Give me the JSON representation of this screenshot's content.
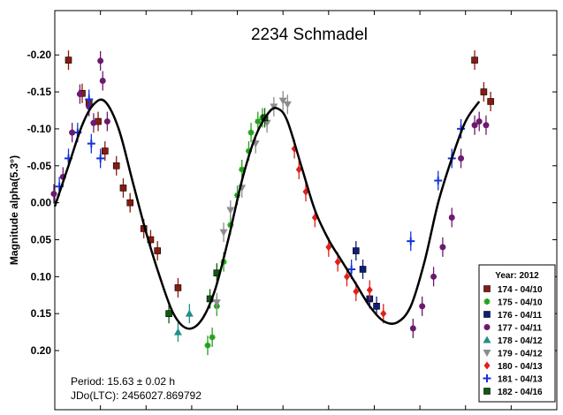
{
  "chart_data": {
    "type": "scatter",
    "title": "2234 Schmadel",
    "xlabel": "",
    "ylabel": "Magnitude alpha(5.3°)",
    "xlim": [
      0,
      1.1
    ],
    "ylim": [
      -0.26,
      0.28
    ],
    "y_reversed": true,
    "y_ticks": [
      -0.2,
      -0.15,
      -0.1,
      -0.05,
      0.0,
      0.05,
      0.1,
      0.15,
      0.2
    ],
    "y_tick_labels": [
      "-0.20",
      "-0.15",
      "-0.10",
      "-0.05",
      "0.00",
      "0.05",
      "0.10",
      "0.15",
      "0.20"
    ],
    "x_ticks": [
      0.1,
      0.2,
      0.3,
      0.4,
      0.5,
      0.6,
      0.7,
      0.8,
      0.9,
      1.0
    ],
    "grid": false,
    "legend_position": "bottom-right",
    "legend_title": "Year: 2012",
    "annotations": [
      "Period: 15.63 ± 0.02 h",
      "JDo(LTC): 2456027.869792"
    ],
    "fit_curve": {
      "color": "#000000",
      "points": [
        [
          0.0,
          0.005
        ],
        [
          0.03,
          -0.05
        ],
        [
          0.06,
          -0.105
        ],
        [
          0.085,
          -0.133
        ],
        [
          0.11,
          -0.137
        ],
        [
          0.14,
          -0.1
        ],
        [
          0.17,
          -0.03
        ],
        [
          0.2,
          0.04
        ],
        [
          0.23,
          0.1
        ],
        [
          0.26,
          0.15
        ],
        [
          0.29,
          0.17
        ],
        [
          0.32,
          0.16
        ],
        [
          0.35,
          0.12
        ],
        [
          0.38,
          0.05
        ],
        [
          0.41,
          -0.03
        ],
        [
          0.44,
          -0.09
        ],
        [
          0.47,
          -0.123
        ],
        [
          0.49,
          -0.127
        ],
        [
          0.51,
          -0.11
        ],
        [
          0.54,
          -0.05
        ],
        [
          0.57,
          0.01
        ],
        [
          0.6,
          0.05
        ],
        [
          0.63,
          0.08
        ],
        [
          0.66,
          0.11
        ],
        [
          0.69,
          0.14
        ],
        [
          0.72,
          0.16
        ],
        [
          0.75,
          0.162
        ],
        [
          0.78,
          0.14
        ],
        [
          0.81,
          0.08
        ],
        [
          0.84,
          0.0
        ],
        [
          0.87,
          -0.06
        ],
        [
          0.9,
          -0.11
        ],
        [
          0.93,
          -0.137
        ]
      ]
    },
    "series": [
      {
        "name": "174 - 04/10",
        "color": "#8b1a0e",
        "marker": "square",
        "points": [
          [
            0.03,
            -0.193
          ],
          [
            0.06,
            -0.148
          ],
          [
            0.075,
            -0.135
          ],
          [
            0.095,
            -0.11
          ],
          [
            0.11,
            -0.07
          ],
          [
            0.135,
            -0.05
          ],
          [
            0.15,
            -0.02
          ],
          [
            0.165,
            0.0
          ],
          [
            0.195,
            0.035
          ],
          [
            0.21,
            0.05
          ],
          [
            0.225,
            0.065
          ],
          [
            0.27,
            0.115
          ],
          [
            0.92,
            -0.193
          ],
          [
            0.94,
            -0.15
          ],
          [
            0.955,
            -0.137
          ]
        ]
      },
      {
        "name": "175 - 04/10",
        "color": "#22a11a",
        "marker": "asterisk",
        "points": [
          [
            0.335,
            0.193
          ],
          [
            0.345,
            0.182
          ],
          [
            0.355,
            0.14
          ],
          [
            0.37,
            0.08
          ],
          [
            0.385,
            0.03
          ],
          [
            0.4,
            -0.01
          ],
          [
            0.41,
            -0.045
          ],
          [
            0.425,
            -0.07
          ],
          [
            0.43,
            -0.095
          ],
          [
            0.445,
            -0.11
          ],
          [
            0.455,
            -0.115
          ]
        ]
      },
      {
        "name": "176 - 04/11",
        "color": "#0d1d7a",
        "marker": "square",
        "points": [
          [
            0.66,
            0.065
          ],
          [
            0.675,
            0.09
          ],
          [
            0.69,
            0.13
          ],
          [
            0.705,
            0.14
          ]
        ]
      },
      {
        "name": "177 - 04/11",
        "color": "#6b1a6e",
        "marker": "circle",
        "points": [
          [
            -0.002,
            -0.012
          ],
          [
            0.018,
            -0.035
          ],
          [
            0.038,
            -0.095
          ],
          [
            0.055,
            -0.147
          ],
          [
            0.075,
            -0.13
          ],
          [
            0.085,
            -0.108
          ],
          [
            0.1,
            -0.192
          ],
          [
            0.105,
            -0.165
          ],
          [
            0.115,
            -0.11
          ],
          [
            0.785,
            0.17
          ],
          [
            0.805,
            0.14
          ],
          [
            0.83,
            0.1
          ],
          [
            0.85,
            0.06
          ],
          [
            0.87,
            0.02
          ],
          [
            0.89,
            -0.06
          ],
          [
            0.92,
            -0.105
          ],
          [
            0.93,
            -0.11
          ],
          [
            0.945,
            -0.105
          ]
        ]
      },
      {
        "name": "178 - 04/12",
        "color": "#1f8f8a",
        "marker": "triangle",
        "points": [
          [
            0.295,
            0.15
          ],
          [
            0.27,
            0.175
          ]
        ]
      },
      {
        "name": "179 - 04/12",
        "color": "#8c8c8c",
        "marker": "triangle-down",
        "points": [
          [
            0.355,
            0.135
          ],
          [
            0.37,
            0.04
          ],
          [
            0.385,
            0.01
          ],
          [
            0.41,
            -0.02
          ],
          [
            0.44,
            -0.08
          ],
          [
            0.465,
            -0.108
          ],
          [
            0.48,
            -0.13
          ],
          [
            0.5,
            -0.138
          ],
          [
            0.51,
            -0.133
          ]
        ]
      },
      {
        "name": "180 - 04/13",
        "color": "#e21f1a",
        "marker": "diamond",
        "points": [
          [
            0.525,
            -0.073
          ],
          [
            0.535,
            -0.045
          ],
          [
            0.55,
            -0.015
          ],
          [
            0.57,
            0.02
          ],
          [
            0.6,
            0.06
          ],
          [
            0.62,
            0.08
          ],
          [
            0.64,
            0.1
          ],
          [
            0.66,
            0.12
          ],
          [
            0.69,
            0.118
          ],
          [
            0.72,
            0.15
          ]
        ]
      },
      {
        "name": "181 - 04/13",
        "color": "#1433d8",
        "marker": "plus",
        "points": [
          [
            0.01,
            -0.022
          ],
          [
            0.03,
            -0.06
          ],
          [
            0.05,
            -0.095
          ],
          [
            0.075,
            -0.14
          ],
          [
            0.08,
            -0.08
          ],
          [
            0.1,
            -0.06
          ],
          [
            0.65,
            0.09
          ],
          [
            0.78,
            0.052
          ],
          [
            0.84,
            -0.03
          ],
          [
            0.87,
            -0.06
          ],
          [
            0.89,
            -0.1
          ]
        ]
      },
      {
        "name": "182 - 04/16",
        "color": "#0e5a0e",
        "marker": "square",
        "points": [
          [
            0.25,
            0.15
          ],
          [
            0.34,
            0.13
          ],
          [
            0.355,
            0.095
          ],
          [
            0.46,
            -0.115
          ]
        ]
      }
    ]
  }
}
